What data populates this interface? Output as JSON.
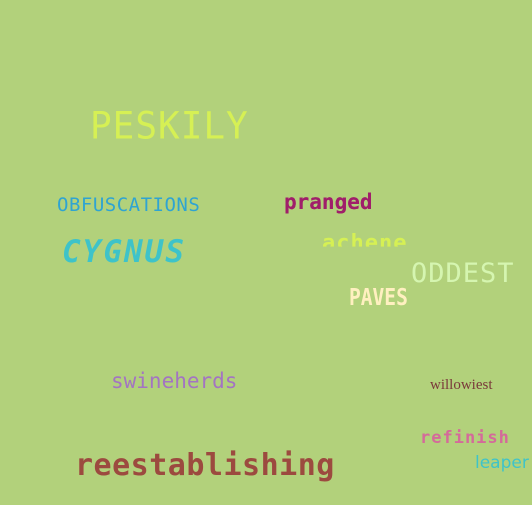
{
  "background_color": "#b2d17b",
  "words": {
    "peskily": {
      "text": "PESKILY",
      "color": "#d6f054"
    },
    "obfuscations": {
      "text": "OBFUSCATIONS",
      "color": "#2fa4d2"
    },
    "pranged": {
      "text": "pranged",
      "color": "#a01e6a"
    },
    "cygnus": {
      "text": "CYGNUS",
      "color": "#3ec3c9"
    },
    "achene": {
      "text": "achene",
      "color": "#d6f054"
    },
    "oddest": {
      "text": "ODDEST",
      "color": "#d5f5b0"
    },
    "paves": {
      "text": "PAVES",
      "color": "#fff0c0"
    },
    "swineherds": {
      "text": "swineherds",
      "color": "#a374c2"
    },
    "willowiest": {
      "text": "willowiest",
      "color": "#7a3a3a"
    },
    "refinish": {
      "text": "refinish",
      "color": "#d46a9a"
    },
    "reestablishing": {
      "text": "reestablishing",
      "color": "#9c4a3f"
    },
    "leaper": {
      "text": "leaper",
      "color": "#3ec3c9"
    }
  }
}
